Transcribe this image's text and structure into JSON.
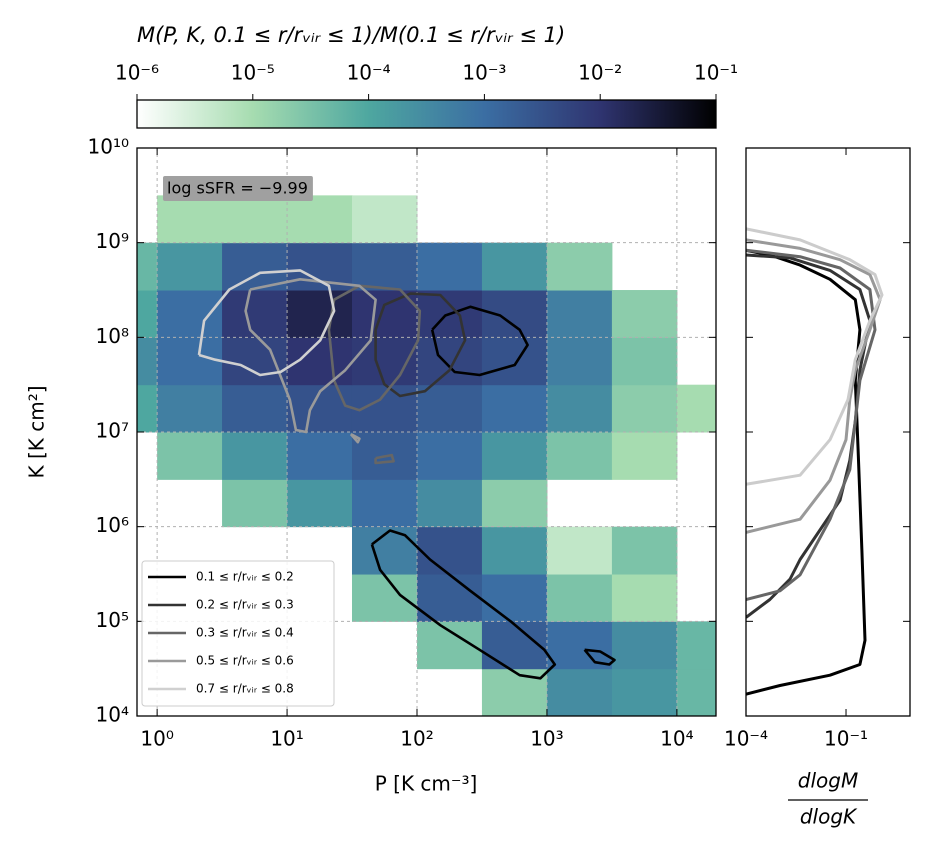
{
  "chart_data": [
    {
      "type": "heatmap",
      "xlabel": "P [K cm⁻³]",
      "ylabel": "K [K cm²]",
      "annotation": "log sSFR = −9.99",
      "xscale": "log",
      "yscale": "log",
      "grid": true,
      "legend": "lower left",
      "xlim": [
        0.7,
        20000
      ],
      "ylim": [
        10000.0,
        10000000000.0
      ],
      "xticks": [
        {
          "value": 1,
          "label": "10⁰"
        },
        {
          "value": 10,
          "label": "10¹"
        },
        {
          "value": 100,
          "label": "10²"
        },
        {
          "value": 1000,
          "label": "10³"
        },
        {
          "value": 10000,
          "label": "10⁴"
        }
      ],
      "yticks": [
        {
          "value": 10000.0,
          "label": "10⁴"
        },
        {
          "value": 100000.0,
          "label": "10⁵"
        },
        {
          "value": 1000000.0,
          "label": "10⁶"
        },
        {
          "value": 10000000.0,
          "label": "10⁷"
        },
        {
          "value": 100000000.0,
          "label": "10⁸"
        },
        {
          "value": 1000000000.0,
          "label": "10⁹"
        },
        {
          "value": 10000000000.0,
          "label": "10¹⁰"
        }
      ],
      "x_edges": [
        0.7,
        1,
        3.16,
        10,
        31.6,
        100,
        316,
        1000,
        3162,
        10000,
        20000
      ],
      "y_edges": [
        10000.0,
        31600.0,
        100000.0,
        316000.0,
        1000000.0,
        3160000.0,
        10000000.0,
        31600000.0,
        100000000.0,
        316000000.0,
        1000000000.0,
        3160000000.0
      ],
      "z": [
        [
          null,
          null,
          null,
          null,
          null,
          null,
          2e-05,
          0.0003,
          0.0002,
          5e-05
        ],
        [
          null,
          null,
          null,
          null,
          null,
          3e-05,
          0.002,
          0.001,
          0.0003,
          5e-05
        ],
        [
          null,
          null,
          null,
          null,
          3e-05,
          0.002,
          0.001,
          3e-05,
          1e-05,
          null
        ],
        [
          null,
          null,
          null,
          null,
          0.0005,
          0.003,
          0.0002,
          5e-06,
          3e-05,
          null
        ],
        [
          null,
          null,
          3e-05,
          0.0002,
          0.001,
          0.0003,
          2e-05,
          null,
          null,
          null
        ],
        [
          null,
          3e-05,
          0.0002,
          0.001,
          0.002,
          0.001,
          0.0002,
          3e-05,
          1e-05,
          null
        ],
        [
          0.0001,
          0.0005,
          0.002,
          0.003,
          0.003,
          0.002,
          0.001,
          0.0003,
          2e-05,
          1e-05
        ],
        [
          0.0003,
          0.001,
          0.005,
          0.01,
          0.008,
          0.005,
          0.003,
          0.0005,
          3e-05,
          null
        ],
        [
          0.0001,
          0.001,
          0.008,
          0.02,
          0.01,
          0.008,
          0.004,
          0.0005,
          2e-05,
          null
        ],
        [
          5e-05,
          0.0002,
          0.002,
          0.003,
          0.002,
          0.001,
          0.0002,
          2e-05,
          null,
          null
        ],
        [
          null,
          1e-05,
          1e-05,
          1e-05,
          5e-06,
          null,
          null,
          null,
          null,
          null
        ]
      ],
      "colorbar": {
        "label": "M(P, K, 0.1 ≤ r/rᵥᵢᵣ ≤ 1)/M(0.1 ≤ r/rᵥᵢᵣ ≤ 1)",
        "scale": "log",
        "lim": [
          1e-06,
          0.1
        ],
        "ticks": [
          {
            "value": 1e-06,
            "label": "10⁻⁶"
          },
          {
            "value": 1e-05,
            "label": "10⁻⁵"
          },
          {
            "value": 0.0001,
            "label": "10⁻⁴"
          },
          {
            "value": 0.001,
            "label": "10⁻³"
          },
          {
            "value": 0.01,
            "label": "10⁻²"
          },
          {
            "value": 0.1,
            "label": "10⁻¹"
          }
        ],
        "colors": [
          "#ffffff",
          "#a6dcb0",
          "#4ea7a0",
          "#3b6ea3",
          "#2f3470",
          "#000000"
        ]
      },
      "series": [
        {
          "name": "0.1 ≤ r/rᵥᵢᵣ ≤ 0.2",
          "color": "#000000",
          "x": [
            131,
            165,
            257,
            437,
            617,
            710,
            565,
            303,
            195,
            145,
            131,
            null,
            45,
            62,
            81,
            126,
            257,
            525,
            955,
            1150,
            891,
            617,
            303,
            151,
            74,
            52,
            45,
            null,
            1950,
            2570,
            3310,
            3020,
            2340,
            1950
          ],
          "y": [
            120000000.0,
            170000000.0,
            210000000.0,
            170000000.0,
            120000000.0,
            83000000.0,
            51000000.0,
            40000000.0,
            43000000.0,
            65000000.0,
            120000000.0,
            null,
            650000.0,
            910000.0,
            810000.0,
            450000.0,
            210000.0,
            100000.0,
            50000.0,
            35000.0,
            25000.0,
            27000.0,
            50000.0,
            91000.0,
            190000.0,
            350000.0,
            650000.0,
            null,
            50000.0,
            48000.0,
            39000.0,
            35000.0,
            37000.0,
            50000.0
          ]
        },
        {
          "name": "0.2 ≤ r/rᵥᵢᵣ ≤ 0.3",
          "color": "#333333",
          "x": [
            48,
            56,
            89,
            151,
            214,
            234,
            178,
            115,
            74,
            56,
            48,
            48
          ],
          "y": [
            120000000.0,
            220000000.0,
            290000000.0,
            280000000.0,
            170000000.0,
            93000000.0,
            45000000.0,
            27000000.0,
            24000000.0,
            32000000.0,
            58000000.0,
            120000000.0
          ]
        },
        {
          "name": "0.3 ≤ r/rᵥᵢᵣ ≤ 0.4",
          "color": "#666666",
          "x": [
            21,
            23,
            36,
            74,
            105,
            102,
            74,
            52,
            36,
            28,
            23,
            21,
            null,
            48,
            64,
            66,
            48,
            48
          ],
          "y": [
            120000000.0,
            250000000.0,
            350000000.0,
            320000000.0,
            190000000.0,
            93000000.0,
            40000000.0,
            22000000.0,
            17000000.0,
            19000000.0,
            35000000.0,
            120000000.0,
            null,
            5300000.0,
            5700000.0,
            4900000.0,
            4700000.0,
            5300000.0
          ]
        },
        {
          "name": "0.5 ≤ r/rᵥᵢᵣ ≤ 0.6",
          "color": "#9a9a9a",
          "x": [
            5.2,
            12.6,
            36,
            48,
            44,
            28,
            18,
            15,
            14,
            11.7,
            10.5,
            7.4,
            5.2,
            4.8,
            5.2,
            null,
            31,
            36,
            35,
            31
          ],
          "y": [
            320000000.0,
            410000000.0,
            350000000.0,
            250000000.0,
            93000000.0,
            45000000.0,
            27000000.0,
            17000000.0,
            10000000.0,
            10500000.0,
            22000000.0,
            74000000.0,
            120000000.0,
            190000000.0,
            320000000.0,
            null,
            9500000.0,
            8500000.0,
            7800000.0,
            9500000.0
          ]
        },
        {
          "name": "0.7 ≤ r/rᵥᵢᵣ ≤ 0.8",
          "color": "#d0d0d0",
          "x": [
            2.1,
            2.3,
            3.6,
            6.2,
            12.6,
            21,
            23,
            18,
            12.6,
            8.9,
            6.2,
            4.4,
            2.8,
            2.1
          ],
          "y": [
            65000000.0,
            150000000.0,
            320000000.0,
            480000000.0,
            510000000.0,
            350000000.0,
            190000000.0,
            93000000.0,
            58000000.0,
            43000000.0,
            40000000.0,
            51000000.0,
            58000000.0,
            65000000.0
          ]
        }
      ]
    },
    {
      "type": "line",
      "xlabel_numerator": "dlogM",
      "xlabel_denominator": "dlogK",
      "xscale": "log",
      "yscale": "log",
      "xlim": [
        0.0001,
        8.3
      ],
      "ylim": [
        10000.0,
        10000000000.0
      ],
      "xticks": [
        {
          "value": 0.0001,
          "label": "10⁻⁴"
        },
        {
          "value": 0.1,
          "label": "10⁻¹"
        }
      ],
      "yticks": [
        10000.0,
        100000.0,
        1000000.0,
        10000000.0,
        100000000.0,
        1000000000.0,
        10000000000.0
      ],
      "series": [
        {
          "color": "#000000",
          "x": [
            0.0001,
            0.00105,
            0.033,
            0.26,
            0.37,
            0.3,
            0.23,
            0.19,
            0.26,
            0.19,
            0.033,
            0.0042,
            0.00052,
            0.0001
          ],
          "y": [
            17000.0,
            21000.0,
            27000.0,
            35000.0,
            63000.0,
            560000.0,
            6500000.0,
            35000000.0,
            120000000.0,
            250000000.0,
            410000000.0,
            580000000.0,
            740000000.0,
            830000000.0
          ]
        },
        {
          "color": "#333333",
          "x": [
            0.0001,
            0.00052,
            0.0021,
            0.0042,
            0.066,
            0.13,
            0.19,
            0.26,
            0.52,
            0.26,
            0.033,
            0.0021,
            0.0001
          ],
          "y": [
            110000.0,
            170000.0,
            280000.0,
            450000.0,
            1900000.0,
            5000000.0,
            13000000.0,
            45000000.0,
            150000000.0,
            320000000.0,
            510000000.0,
            690000000.0,
            740000000.0
          ]
        },
        {
          "color": "#666666",
          "x": [
            0.0001,
            0.00105,
            0.0042,
            0.033,
            0.13,
            0.19,
            0.26,
            0.74,
            0.52,
            0.066,
            0.0042,
            0.0001
          ],
          "y": [
            170000.0,
            210000.0,
            310000.0,
            1200000.0,
            4000000.0,
            13000000.0,
            35000000.0,
            120000000.0,
            320000000.0,
            540000000.0,
            710000000.0,
            830000000.0
          ]
        },
        {
          "color": "#999999",
          "x": [
            0.0001,
            0.0042,
            0.033,
            0.1,
            0.13,
            0.19,
            0.52,
            1.05,
            0.52,
            0.066,
            0.0042,
            0.0001
          ],
          "y": [
            870000.0,
            1200000.0,
            3100000.0,
            8300000.0,
            22000000.0,
            45000000.0,
            120000000.0,
            250000000.0,
            460000000.0,
            660000000.0,
            870000000.0,
            1070000000.0
          ]
        },
        {
          "color": "#cccccc",
          "x": [
            0.0001,
            0.0042,
            0.033,
            0.115,
            0.19,
            0.52,
            1.2,
            0.74,
            0.13,
            0.0042,
            0.0001
          ],
          "y": [
            2800000.0,
            3500000.0,
            8300000.0,
            22000000.0,
            58000000.0,
            150000000.0,
            280000000.0,
            460000000.0,
            660000000.0,
            1070000000.0,
            1400000000.0
          ]
        }
      ]
    }
  ]
}
